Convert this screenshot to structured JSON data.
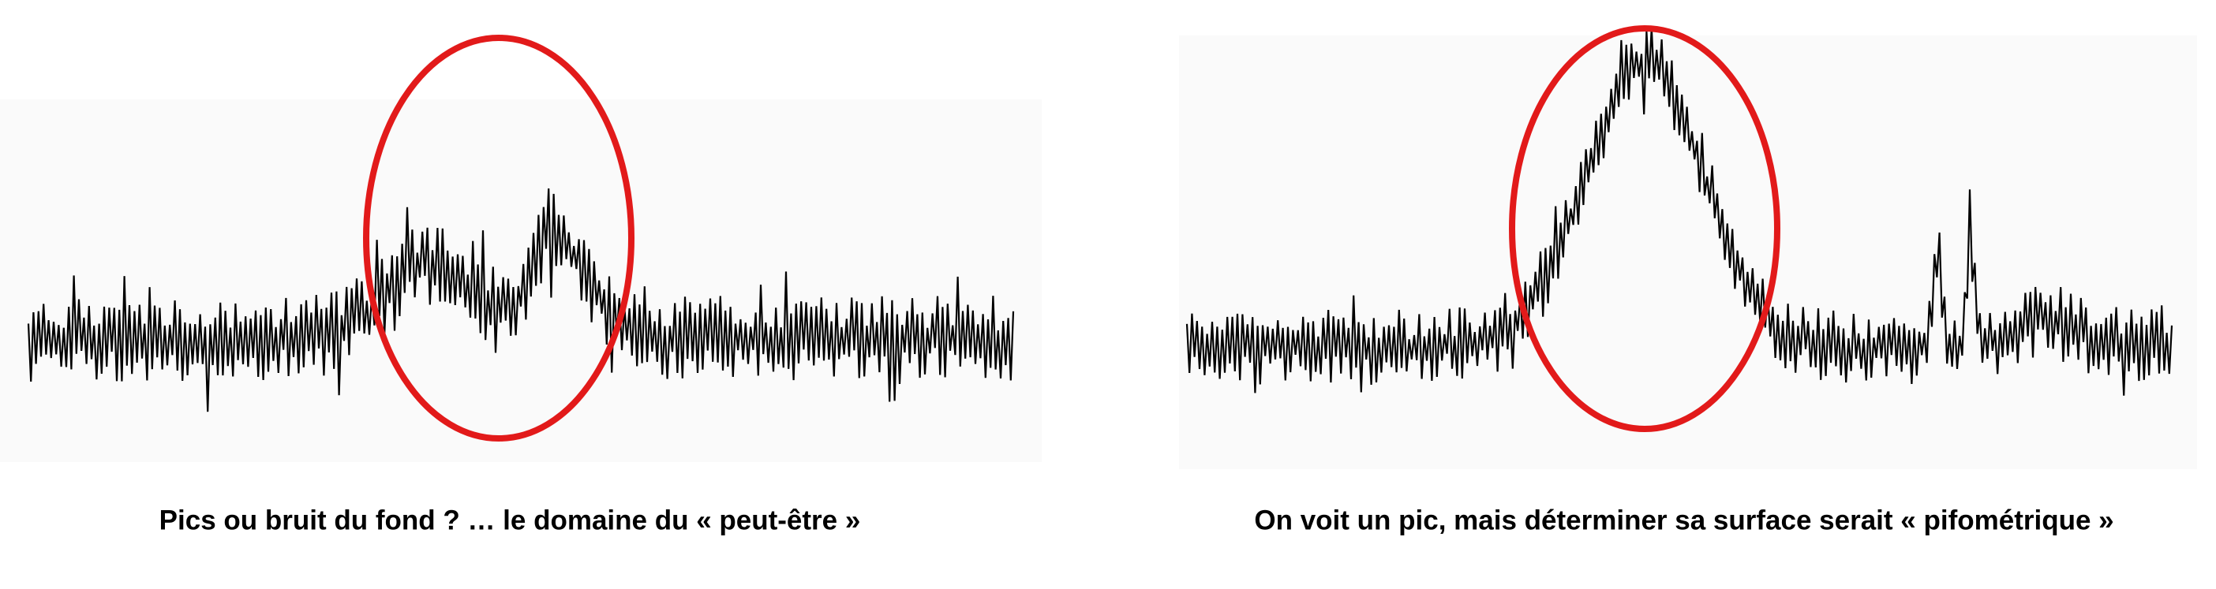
{
  "panels": [
    {
      "caption": "Pics ou bruit du fond ? … le domaine du « peut-être »"
    },
    {
      "caption": "On voit un pic, mais déterminer sa surface serait « pifométrique »"
    }
  ]
}
